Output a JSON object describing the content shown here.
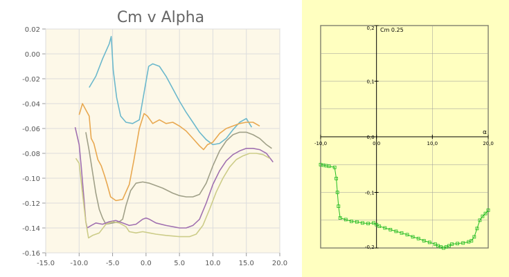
{
  "chart_data": [
    {
      "type": "line",
      "title": "Cm v Alpha",
      "xlim": [
        -15,
        20
      ],
      "ylim": [
        -0.16,
        0.02
      ],
      "xticks": [
        "-15.0",
        "-10.0",
        "-5.0",
        "0.0",
        "5.0",
        "10.0",
        "15.0",
        "20.0"
      ],
      "yticks": [
        "0.02",
        "0.00",
        "-0.02",
        "-0.04",
        "-0.06",
        "-0.08",
        "-0.10",
        "-0.12",
        "-0.14",
        "-0.16"
      ],
      "grid": true,
      "legend": "none",
      "series": [
        {
          "color": "#6bb8cc",
          "points": [
            [
              -8.5,
              -0.027
            ],
            [
              -7.5,
              -0.018
            ],
            [
              -6.5,
              -0.004
            ],
            [
              -5.5,
              0.008
            ],
            [
              -5.2,
              0.014
            ],
            [
              -4.9,
              -0.013
            ],
            [
              -4.4,
              -0.035
            ],
            [
              -3.8,
              -0.05
            ],
            [
              -3.0,
              -0.055
            ],
            [
              -2.0,
              -0.056
            ],
            [
              -1.0,
              -0.053
            ],
            [
              0.0,
              -0.022
            ],
            [
              0.4,
              -0.01
            ],
            [
              1.0,
              -0.008
            ],
            [
              2.0,
              -0.01
            ],
            [
              3.0,
              -0.018
            ],
            [
              4.0,
              -0.028
            ],
            [
              5.0,
              -0.038
            ],
            [
              6.0,
              -0.047
            ],
            [
              7.0,
              -0.055
            ],
            [
              8.0,
              -0.063
            ],
            [
              9.0,
              -0.069
            ],
            [
              10.0,
              -0.073
            ],
            [
              11.0,
              -0.072
            ],
            [
              12.0,
              -0.068
            ],
            [
              13.0,
              -0.061
            ],
            [
              14.0,
              -0.055
            ],
            [
              15.0,
              -0.052
            ],
            [
              15.8,
              -0.059
            ]
          ]
        },
        {
          "color": "#e8a850",
          "points": [
            [
              -10.0,
              -0.049
            ],
            [
              -9.5,
              -0.04
            ],
            [
              -9.0,
              -0.045
            ],
            [
              -8.5,
              -0.05
            ],
            [
              -8.2,
              -0.068
            ],
            [
              -7.8,
              -0.072
            ],
            [
              -7.2,
              -0.085
            ],
            [
              -6.7,
              -0.09
            ],
            [
              -6.2,
              -0.098
            ],
            [
              -5.8,
              -0.105
            ],
            [
              -5.3,
              -0.115
            ],
            [
              -4.5,
              -0.118
            ],
            [
              -3.5,
              -0.117
            ],
            [
              -2.5,
              -0.105
            ],
            [
              -1.8,
              -0.085
            ],
            [
              -1.0,
              -0.06
            ],
            [
              -0.3,
              -0.048
            ],
            [
              0.2,
              -0.05
            ],
            [
              1.0,
              -0.056
            ],
            [
              2.0,
              -0.053
            ],
            [
              3.0,
              -0.056
            ],
            [
              4.0,
              -0.055
            ],
            [
              5.0,
              -0.058
            ],
            [
              6.0,
              -0.062
            ],
            [
              7.0,
              -0.068
            ],
            [
              8.0,
              -0.074
            ],
            [
              8.6,
              -0.077
            ],
            [
              9.2,
              -0.073
            ],
            [
              10.0,
              -0.071
            ],
            [
              11.0,
              -0.064
            ],
            [
              12.0,
              -0.06
            ],
            [
              13.0,
              -0.058
            ],
            [
              14.0,
              -0.056
            ],
            [
              15.0,
              -0.055
            ],
            [
              16.0,
              -0.055
            ],
            [
              17.0,
              -0.058
            ]
          ]
        },
        {
          "color": "#a0a088",
          "points": [
            [
              -9.0,
              -0.063
            ],
            [
              -8.5,
              -0.078
            ],
            [
              -8.0,
              -0.095
            ],
            [
              -7.5,
              -0.112
            ],
            [
              -7.0,
              -0.125
            ],
            [
              -6.5,
              -0.132
            ],
            [
              -6.0,
              -0.137
            ],
            [
              -5.0,
              -0.136
            ],
            [
              -4.0,
              -0.135
            ],
            [
              -3.5,
              -0.133
            ],
            [
              -3.0,
              -0.122
            ],
            [
              -2.3,
              -0.11
            ],
            [
              -1.5,
              -0.104
            ],
            [
              -0.5,
              -0.103
            ],
            [
              0.5,
              -0.104
            ],
            [
              1.5,
              -0.106
            ],
            [
              2.5,
              -0.108
            ],
            [
              4.0,
              -0.112
            ],
            [
              5.0,
              -0.114
            ],
            [
              6.0,
              -0.115
            ],
            [
              7.0,
              -0.115
            ],
            [
              8.0,
              -0.113
            ],
            [
              9.0,
              -0.104
            ],
            [
              10.0,
              -0.09
            ],
            [
              11.0,
              -0.078
            ],
            [
              12.0,
              -0.07
            ],
            [
              13.0,
              -0.065
            ],
            [
              14.0,
              -0.063
            ],
            [
              15.0,
              -0.063
            ],
            [
              16.0,
              -0.065
            ],
            [
              17.0,
              -0.068
            ],
            [
              18.0,
              -0.073
            ],
            [
              18.8,
              -0.076
            ]
          ]
        },
        {
          "color": "#a070b0",
          "points": [
            [
              -10.6,
              -0.059
            ],
            [
              -10.0,
              -0.073
            ],
            [
              -9.7,
              -0.09
            ],
            [
              -9.3,
              -0.115
            ],
            [
              -9.0,
              -0.135
            ],
            [
              -8.8,
              -0.14
            ],
            [
              -8.2,
              -0.138
            ],
            [
              -7.5,
              -0.136
            ],
            [
              -6.5,
              -0.137
            ],
            [
              -5.5,
              -0.135
            ],
            [
              -4.5,
              -0.134
            ],
            [
              -3.5,
              -0.136
            ],
            [
              -2.5,
              -0.138
            ],
            [
              -1.5,
              -0.137
            ],
            [
              -0.5,
              -0.133
            ],
            [
              0.0,
              -0.132
            ],
            [
              0.5,
              -0.133
            ],
            [
              1.5,
              -0.136
            ],
            [
              3.0,
              -0.138
            ],
            [
              5.0,
              -0.14
            ],
            [
              6.0,
              -0.14
            ],
            [
              7.0,
              -0.138
            ],
            [
              8.0,
              -0.133
            ],
            [
              9.0,
              -0.12
            ],
            [
              10.0,
              -0.105
            ],
            [
              11.0,
              -0.094
            ],
            [
              12.0,
              -0.086
            ],
            [
              13.0,
              -0.081
            ],
            [
              14.0,
              -0.078
            ],
            [
              15.0,
              -0.076
            ],
            [
              16.0,
              -0.076
            ],
            [
              17.0,
              -0.077
            ],
            [
              18.0,
              -0.08
            ],
            [
              19.0,
              -0.087
            ]
          ]
        },
        {
          "color": "#cccc88",
          "points": [
            [
              -10.5,
              -0.084
            ],
            [
              -10.0,
              -0.088
            ],
            [
              -9.5,
              -0.112
            ],
            [
              -9.0,
              -0.135
            ],
            [
              -8.6,
              -0.148
            ],
            [
              -8.0,
              -0.146
            ],
            [
              -7.0,
              -0.144
            ],
            [
              -6.0,
              -0.137
            ],
            [
              -5.0,
              -0.135
            ],
            [
              -4.0,
              -0.136
            ],
            [
              -3.0,
              -0.139
            ],
            [
              -2.5,
              -0.143
            ],
            [
              -1.5,
              -0.144
            ],
            [
              -0.5,
              -0.143
            ],
            [
              0.5,
              -0.144
            ],
            [
              1.5,
              -0.145
            ],
            [
              3.0,
              -0.146
            ],
            [
              5.0,
              -0.147
            ],
            [
              6.5,
              -0.147
            ],
            [
              7.5,
              -0.145
            ],
            [
              8.5,
              -0.138
            ],
            [
              9.5,
              -0.125
            ],
            [
              10.5,
              -0.111
            ],
            [
              11.5,
              -0.1
            ],
            [
              12.5,
              -0.091
            ],
            [
              13.5,
              -0.085
            ],
            [
              14.5,
              -0.082
            ],
            [
              15.5,
              -0.08
            ],
            [
              16.5,
              -0.08
            ],
            [
              17.5,
              -0.081
            ],
            [
              18.5,
              -0.084
            ]
          ]
        }
      ]
    },
    {
      "type": "line",
      "title": "",
      "ylabel": "Cm 0.25",
      "xlabel": "α",
      "xlim": [
        -10,
        20
      ],
      "ylim": [
        -0.2,
        0.2
      ],
      "xticks": [
        "-10,0",
        "0,0",
        "10,0",
        "20,0"
      ],
      "yticks": [
        "0,2",
        "0,1",
        "0,0",
        "-0,1",
        "-0,2"
      ],
      "grid": true,
      "legend": "none",
      "series": [
        {
          "color": "#22bb22",
          "marker": "square",
          "points": [
            [
              -10.0,
              -0.05
            ],
            [
              -9.5,
              -0.051
            ],
            [
              -9.0,
              -0.052
            ],
            [
              -8.5,
              -0.053
            ],
            [
              -7.5,
              -0.055
            ],
            [
              -7.2,
              -0.075
            ],
            [
              -7.0,
              -0.1
            ],
            [
              -6.8,
              -0.125
            ],
            [
              -6.5,
              -0.146
            ],
            [
              -5.5,
              -0.149
            ],
            [
              -4.5,
              -0.152
            ],
            [
              -3.5,
              -0.153
            ],
            [
              -2.5,
              -0.155
            ],
            [
              -1.5,
              -0.156
            ],
            [
              -0.5,
              -0.155
            ],
            [
              0.0,
              -0.158
            ],
            [
              0.5,
              -0.161
            ],
            [
              1.5,
              -0.164
            ],
            [
              2.5,
              -0.167
            ],
            [
              3.5,
              -0.17
            ],
            [
              4.5,
              -0.173
            ],
            [
              5.5,
              -0.176
            ],
            [
              6.5,
              -0.18
            ],
            [
              7.5,
              -0.183
            ],
            [
              8.5,
              -0.187
            ],
            [
              9.5,
              -0.19
            ],
            [
              10.5,
              -0.193
            ],
            [
              11.0,
              -0.196
            ],
            [
              11.5,
              -0.198
            ],
            [
              12.0,
              -0.2
            ],
            [
              12.5,
              -0.198
            ],
            [
              13.0,
              -0.196
            ],
            [
              13.5,
              -0.193
            ],
            [
              14.5,
              -0.192
            ],
            [
              15.5,
              -0.191
            ],
            [
              16.5,
              -0.189
            ],
            [
              17.0,
              -0.187
            ],
            [
              17.5,
              -0.18
            ],
            [
              18.0,
              -0.165
            ],
            [
              18.5,
              -0.15
            ],
            [
              19.0,
              -0.143
            ],
            [
              19.5,
              -0.138
            ],
            [
              20.0,
              -0.132
            ]
          ]
        }
      ]
    }
  ]
}
